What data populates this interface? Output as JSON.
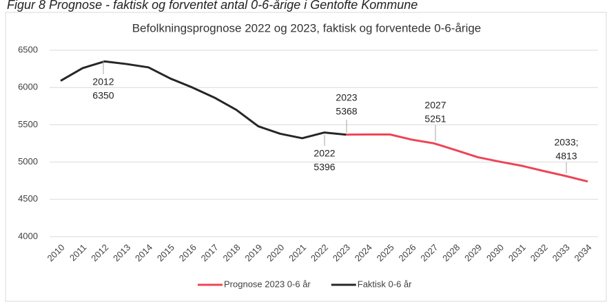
{
  "caption": "Figur 8 Prognose - faktisk og forventet antal 0-6-årige i Gentofte Kommune",
  "chart_data": {
    "type": "line",
    "title": "Befolkningsprognose 2022 og 2023, faktisk og forventede 0-6-årige",
    "categories": [
      "2010",
      "2011",
      "2012",
      "2013",
      "2014",
      "2015",
      "2016",
      "2017",
      "2018",
      "2019",
      "2020",
      "2021",
      "2022",
      "2023",
      "2024",
      "2025",
      "2026",
      "2027",
      "2028",
      "2029",
      "2030",
      "2031",
      "2032",
      "2033",
      "2034"
    ],
    "series": [
      {
        "name": "Prognose 2023 0-6 år",
        "color": "#ee4454",
        "values": [
          null,
          null,
          null,
          null,
          null,
          null,
          null,
          null,
          null,
          null,
          null,
          null,
          null,
          5368,
          5370,
          5370,
          5300,
          5251,
          5160,
          5065,
          5005,
          4950,
          4880,
          4813,
          4740
        ]
      },
      {
        "name": "Faktisk 0-6 år",
        "color": "#262626",
        "values": [
          6090,
          6260,
          6350,
          6315,
          6270,
          6120,
          6000,
          5865,
          5700,
          5480,
          5380,
          5320,
          5396,
          5368,
          null,
          null,
          null,
          null,
          null,
          null,
          null,
          null,
          null,
          null,
          null
        ]
      }
    ],
    "ylim": [
      4000,
      6500
    ],
    "yticks": [
      4000,
      4500,
      5000,
      5500,
      6000,
      6500
    ],
    "grid": true,
    "legend": "bottom",
    "annotations": [
      [
        "2012",
        "6350"
      ],
      [
        "2023",
        "5368"
      ],
      [
        "2027",
        "5251"
      ],
      [
        "2022",
        "5396"
      ],
      [
        "2033;",
        "4813"
      ]
    ]
  }
}
